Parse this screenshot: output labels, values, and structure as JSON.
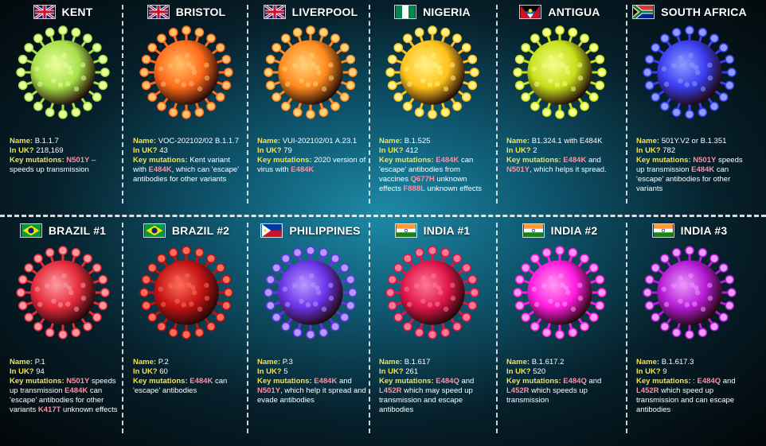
{
  "variants": [
    {
      "title": "KENT",
      "flag": "uk",
      "color": "#a8e04a",
      "core": "#e9ff9c",
      "name": "B.1.1.7",
      "in_uk": "218,169",
      "lines": [
        {
          "t": "N501Y",
          "c": "m"
        },
        {
          "t": " – speeds up transmission",
          "c": ""
        }
      ]
    },
    {
      "title": "BRISTOL",
      "flag": "uk",
      "color": "#ff6a1a",
      "core": "#ffc16b",
      "name": "VOC-202102/02 B.1.1.7",
      "in_uk": "43",
      "lines": [
        {
          "t": "Kent variant with ",
          "c": ""
        },
        {
          "t": "E484K",
          "c": "m"
        },
        {
          "t": ", which can 'escape' antibodies for other variants",
          "c": ""
        }
      ]
    },
    {
      "title": "LIVERPOOL",
      "flag": "uk",
      "color": "#ff8a1e",
      "core": "#ffd37a",
      "name": "VUI-202102/01 A.23.1",
      "in_uk": "79",
      "lines": [
        {
          "t": "2020 version of virus with ",
          "c": ""
        },
        {
          "t": "E484K",
          "c": "m"
        }
      ]
    },
    {
      "title": "NIGERIA",
      "flag": "ng",
      "color": "#ffc21a",
      "core": "#fff28a",
      "name": "B.1.525",
      "in_uk": "412",
      "lines": [
        {
          "t": "E484K",
          "c": "m"
        },
        {
          "t": " can 'escape' antibodies from vaccines ",
          "c": ""
        },
        {
          "t": "Q677H",
          "c": "m"
        },
        {
          "t": " unknown effects ",
          "c": ""
        },
        {
          "t": "F888L",
          "c": "m"
        },
        {
          "t": " unknown effects",
          "c": ""
        }
      ]
    },
    {
      "title": "ANTIGUA",
      "flag": "ag",
      "color": "#c7e01a",
      "core": "#f6ff8c",
      "name": "B1.324.1 with E484K",
      "in_uk": "2",
      "lines": [
        {
          "t": "E484K",
          "c": "m"
        },
        {
          "t": " and ",
          "c": ""
        },
        {
          "t": "N501Y",
          "c": "m"
        },
        {
          "t": ", which helps it spread.",
          "c": ""
        }
      ]
    },
    {
      "title": "SOUTH AFRICA",
      "flag": "za",
      "color": "#3a3cf0",
      "core": "#8c9cff",
      "name": "501Y.V2 or B.1.351",
      "in_uk": "782",
      "lines": [
        {
          "t": "N501Y",
          "c": "m"
        },
        {
          "t": " speeds up transmission ",
          "c": ""
        },
        {
          "t": "E484K",
          "c": "m"
        },
        {
          "t": " can 'escape' antibodies for other variants",
          "c": ""
        }
      ]
    },
    {
      "title": "BRAZIL #1",
      "flag": "br",
      "color": "#e52a3a",
      "core": "#ff9aa2",
      "name": "P.1",
      "in_uk": "94",
      "lines": [
        {
          "t": "N501Y",
          "c": "m"
        },
        {
          "t": " speeds up transmission ",
          "c": ""
        },
        {
          "t": "E484K",
          "c": "m"
        },
        {
          "t": " can 'escape' antibodies for other variants ",
          "c": ""
        },
        {
          "t": "K417T",
          "c": "m"
        },
        {
          "t": " unknown effects",
          "c": ""
        }
      ]
    },
    {
      "title": "BRAZIL #2",
      "flag": "br",
      "color": "#c41212",
      "core": "#ff6e5a",
      "name": "P.2",
      "in_uk": "60",
      "lines": [
        {
          "t": "E484K",
          "c": "m"
        },
        {
          "t": " can 'escape' antibodies",
          "c": ""
        }
      ]
    },
    {
      "title": "PHILIPPINES",
      "flag": "ph",
      "color": "#6a32e8",
      "core": "#b59aff",
      "name": "P.3",
      "in_uk": "5",
      "lines": [
        {
          "t": "E484K",
          "c": "m"
        },
        {
          "t": " and ",
          "c": ""
        },
        {
          "t": "N501Y",
          "c": "m"
        },
        {
          "t": ", which help it spread and evade antibodies",
          "c": ""
        }
      ]
    },
    {
      "title": "INDIA #1",
      "flag": "in",
      "color": "#e0154a",
      "core": "#ff7a96",
      "name": "B.1.617",
      "in_uk": "261",
      "lines": [
        {
          "t": "E484Q",
          "c": "m"
        },
        {
          "t": " and ",
          "c": ""
        },
        {
          "t": "L452R",
          "c": "m"
        },
        {
          "t": " which may speed up transmission and escape antibodies",
          "c": ""
        }
      ]
    },
    {
      "title": "INDIA #2",
      "flag": "in",
      "color": "#ff1adf",
      "core": "#ff9af2",
      "name": "B.1.617.2",
      "in_uk": "520",
      "lines": [
        {
          "t": "E484Q",
          "c": "m"
        },
        {
          "t": " and ",
          "c": ""
        },
        {
          "t": "L452R",
          "c": "m"
        },
        {
          "t": " which speeds up transmission",
          "c": ""
        }
      ]
    },
    {
      "title": "INDIA #3",
      "flag": "in",
      "color": "#b51ad6",
      "core": "#ec9aff",
      "name": "B.1.617.3",
      "in_uk": "9",
      "lines": [
        {
          "t": ": ",
          "c": ""
        },
        {
          "t": "E484Q",
          "c": "m"
        },
        {
          "t": " and ",
          "c": ""
        },
        {
          "t": "L452R",
          "c": "m"
        },
        {
          "t": " which speed up transmission and can escape antibodies",
          "c": ""
        }
      ]
    }
  ],
  "labels": {
    "name": "Name:",
    "in_uk": "In UK?",
    "key_mutations": "Key mutations:"
  }
}
